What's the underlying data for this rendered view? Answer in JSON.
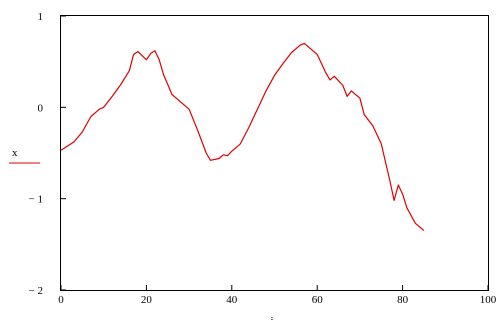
{
  "chart_data": {
    "type": "line",
    "xlabel": "i",
    "ylabel": "x",
    "xlim": [
      0,
      100
    ],
    "ylim": [
      -2,
      1
    ],
    "x_ticks": [
      0,
      20,
      40,
      60,
      80,
      100
    ],
    "y_ticks": [
      1,
      0,
      -1,
      -2
    ],
    "x_tick_labels": [
      "0",
      "20",
      "40",
      "60",
      "80",
      "100"
    ],
    "y_tick_labels": [
      "1",
      "0",
      "− 1",
      "− 2"
    ],
    "grid": false,
    "legend": "left",
    "series": [
      {
        "name": "x",
        "color": "#e00000",
        "points": [
          [
            0,
            -0.47
          ],
          [
            3,
            -0.38
          ],
          [
            5,
            -0.27
          ],
          [
            7,
            -0.1
          ],
          [
            9,
            -0.02
          ],
          [
            10,
            0.0
          ],
          [
            12,
            0.12
          ],
          [
            14,
            0.25
          ],
          [
            16,
            0.4
          ],
          [
            17,
            0.58
          ],
          [
            18,
            0.61
          ],
          [
            20,
            0.52
          ],
          [
            21,
            0.59
          ],
          [
            22,
            0.62
          ],
          [
            23,
            0.52
          ],
          [
            24,
            0.36
          ],
          [
            26,
            0.14
          ],
          [
            28,
            0.06
          ],
          [
            30,
            -0.02
          ],
          [
            32,
            -0.25
          ],
          [
            34,
            -0.5
          ],
          [
            35,
            -0.58
          ],
          [
            37,
            -0.56
          ],
          [
            38,
            -0.52
          ],
          [
            39,
            -0.53
          ],
          [
            40,
            -0.48
          ],
          [
            42,
            -0.4
          ],
          [
            44,
            -0.22
          ],
          [
            46,
            -0.02
          ],
          [
            48,
            0.18
          ],
          [
            50,
            0.35
          ],
          [
            52,
            0.48
          ],
          [
            54,
            0.6
          ],
          [
            56,
            0.68
          ],
          [
            57,
            0.7
          ],
          [
            60,
            0.58
          ],
          [
            62,
            0.38
          ],
          [
            63,
            0.3
          ],
          [
            64,
            0.34
          ],
          [
            66,
            0.24
          ],
          [
            67,
            0.12
          ],
          [
            68,
            0.18
          ],
          [
            70,
            0.1
          ],
          [
            71,
            -0.08
          ],
          [
            73,
            -0.2
          ],
          [
            75,
            -0.4
          ],
          [
            76,
            -0.6
          ],
          [
            77,
            -0.8
          ],
          [
            78,
            -1.02
          ],
          [
            79,
            -0.85
          ],
          [
            80,
            -0.95
          ],
          [
            81,
            -1.1
          ],
          [
            83,
            -1.27
          ],
          [
            85,
            -1.35
          ]
        ]
      }
    ]
  }
}
